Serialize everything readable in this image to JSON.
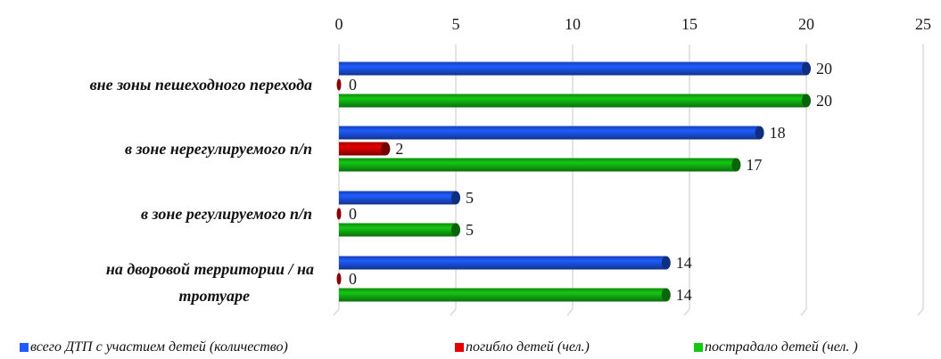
{
  "chart_data": {
    "type": "bar",
    "orientation": "horizontal",
    "categories": [
      "вне зоны пешеходного перехода",
      "в зоне нерегулируемого п/п",
      "в зоне регулируемого п/п",
      "на дворовой территории / на тротуаре"
    ],
    "series": [
      {
        "name": "всего ДТП с участием детей (количество)",
        "color": "#1f5cff",
        "values": [
          20,
          18,
          5,
          14
        ]
      },
      {
        "name": "погибло детей (чел.)",
        "color": "#e60000",
        "values": [
          0,
          2,
          0,
          0
        ]
      },
      {
        "name": "пострадало детей (чел. )",
        "color": "#14c814",
        "values": [
          20,
          17,
          5,
          14
        ]
      }
    ],
    "xlim": [
      0,
      25
    ],
    "xticks": [
      0,
      5,
      10,
      15,
      20,
      25
    ],
    "x_axis_position": "top",
    "grid": true,
    "data_labels": true,
    "legend": "bottom"
  }
}
